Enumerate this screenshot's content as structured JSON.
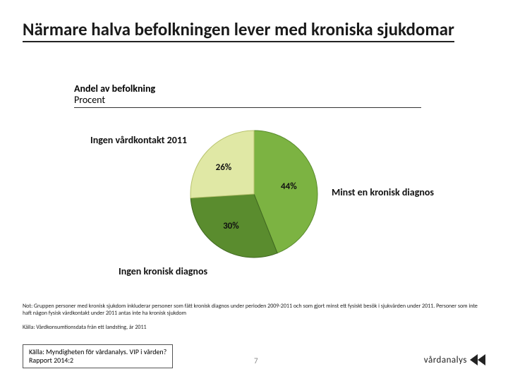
{
  "title": "Närmare halva befolkningen lever med kroniska sjukdomar",
  "subtitle_line1": "Andel av befolkning",
  "subtitle_line2": "Procent",
  "chart": {
    "type": "pie",
    "slices": [
      {
        "label": "44%",
        "value": 44,
        "color": "#7cb342",
        "stroke": "#5a8c2e",
        "annotation": "Minst en kronisk diagnos"
      },
      {
        "label": "30%",
        "value": 30,
        "color": "#5a8c2e",
        "stroke": "#3f6620",
        "annotation": "Ingen kronisk diagnos"
      },
      {
        "label": "26%",
        "value": 26,
        "color": "#e0e8a5",
        "stroke": "#b8c36d",
        "annotation": "Ingen vårdkontakt 2011"
      }
    ],
    "start_angle_deg": -90,
    "background_color": "#ffffff"
  },
  "note1": "Not: Gruppen personer med kronisk sjukdom inkluderar personer som fått kronisk diagnos under perioden 2009-2011 och som gjort minst ett fysiskt besök i sjukvården under 2011. Personer som inte haft någon fysisk vårdkontakt under 2011 antas inte ha kronisk sjukdom",
  "note2": "Källa: Vårdkonsumtionsdata från ett landsting, år 2011",
  "source_box_line1": "Källa: Myndigheten för vårdanalys. VIP i vården?",
  "source_box_line2": "Rapport 2014:2",
  "page_number": "7",
  "logo_text": "vårdanalys",
  "colors": {
    "text": "#1a1a1a",
    "underline": "#222222",
    "logo_mark": "#222222"
  }
}
